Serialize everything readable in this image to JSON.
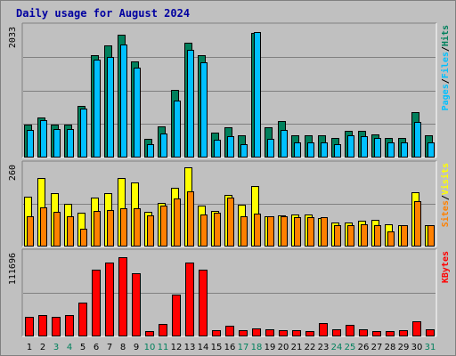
{
  "title": "Daily usage for August 2024",
  "colors": {
    "background": "#c0c0c0",
    "grid": "#808080",
    "hits": "#00805c",
    "files": "#00c0ff",
    "pages": "#00c0ff",
    "visits": "#ffff00",
    "sites": "#ff8000",
    "kbytes": "#ff0000",
    "weekend_label": "#00805c",
    "weekday_label": "#000000"
  },
  "chart_data": [
    {
      "type": "bar",
      "name": "hits-files-pages",
      "ymax_label": "2033",
      "ymax": 2033,
      "right_labels": [
        "Pages",
        "/",
        "Files",
        "/",
        "Hits"
      ],
      "categories": [
        "1",
        "2",
        "3",
        "4",
        "5",
        "6",
        "7",
        "8",
        "9",
        "10",
        "11",
        "12",
        "13",
        "14",
        "15",
        "16",
        "17",
        "18",
        "19",
        "20",
        "21",
        "22",
        "23",
        "24",
        "25",
        "26",
        "27",
        "28",
        "29",
        "30",
        "31"
      ],
      "series": [
        {
          "name": "Hits",
          "values": [
            500,
            620,
            500,
            500,
            800,
            1600,
            1750,
            1920,
            1500,
            280,
            480,
            1050,
            1800,
            1600,
            380,
            460,
            340,
            1950,
            460,
            560,
            330,
            330,
            330,
            300,
            400,
            400,
            350,
            300,
            300,
            700,
            330
          ]
        },
        {
          "name": "Files",
          "values": [
            420,
            570,
            430,
            430,
            760,
            1530,
            1570,
            1770,
            1400,
            200,
            360,
            880,
            1680,
            1490,
            260,
            320,
            200,
            1960,
            280,
            420,
            230,
            230,
            230,
            200,
            330,
            320,
            290,
            230,
            220,
            540,
            230
          ]
        },
        {
          "name": "Pages",
          "values": [
            10,
            10,
            10,
            10,
            10,
            10,
            10,
            10,
            10,
            10,
            10,
            10,
            10,
            10,
            10,
            10,
            10,
            10,
            10,
            10,
            10,
            10,
            10,
            10,
            10,
            10,
            10,
            10,
            10,
            10,
            10
          ]
        }
      ]
    },
    {
      "type": "bar",
      "name": "visits-sites",
      "ymax_label": "260",
      "ymax": 260,
      "right_labels": [
        "Sites",
        "/",
        "Visits"
      ],
      "categories": [
        "1",
        "2",
        "3",
        "4",
        "5",
        "6",
        "7",
        "8",
        "9",
        "10",
        "11",
        "12",
        "13",
        "14",
        "15",
        "16",
        "17",
        "18",
        "19",
        "20",
        "21",
        "22",
        "23",
        "24",
        "25",
        "26",
        "27",
        "28",
        "29",
        "30",
        "31"
      ],
      "series": [
        {
          "name": "Visits",
          "values": [
            160,
            220,
            170,
            135,
            107,
            156,
            170,
            220,
            205,
            110,
            140,
            188,
            255,
            130,
            112,
            164,
            134,
            193,
            96,
            98,
            100,
            100,
            90,
            74,
            75,
            80,
            83,
            70,
            67,
            174,
            67
          ]
        },
        {
          "name": "Sites",
          "values": [
            95,
            125,
            111,
            94,
            56,
            112,
            116,
            122,
            122,
            99,
            131,
            152,
            176,
            100,
            106,
            157,
            96,
            104,
            95,
            94,
            93,
            92,
            91,
            65,
            65,
            68,
            66,
            46,
            66,
            143,
            65
          ]
        }
      ]
    },
    {
      "type": "bar",
      "name": "kbytes",
      "ymax_label": "111696",
      "ymax": 111696,
      "right_labels": [
        "KBytes"
      ],
      "categories": [
        "1",
        "2",
        "3",
        "4",
        "5",
        "6",
        "7",
        "8",
        "9",
        "10",
        "11",
        "12",
        "13",
        "14",
        "15",
        "16",
        "17",
        "18",
        "19",
        "20",
        "21",
        "22",
        "23",
        "24",
        "25",
        "26",
        "27",
        "28",
        "29",
        "30",
        "31"
      ],
      "series": [
        {
          "name": "KBytes",
          "values": [
            25000,
            28000,
            25000,
            28000,
            45000,
            90000,
            99000,
            107000,
            85000,
            6000,
            16000,
            56000,
            99000,
            90000,
            7500,
            13000,
            7000,
            10000,
            8000,
            7000,
            7000,
            6000,
            17000,
            8000,
            14000,
            8000,
            6000,
            6000,
            7000,
            19000,
            8000
          ]
        }
      ]
    }
  ],
  "x_labels": [
    {
      "text": "1",
      "weekend": false
    },
    {
      "text": "2",
      "weekend": false
    },
    {
      "text": "3",
      "weekend": true
    },
    {
      "text": "4",
      "weekend": true
    },
    {
      "text": "5",
      "weekend": false
    },
    {
      "text": "6",
      "weekend": false
    },
    {
      "text": "7",
      "weekend": false
    },
    {
      "text": "8",
      "weekend": false
    },
    {
      "text": "9",
      "weekend": false
    },
    {
      "text": "10",
      "weekend": true
    },
    {
      "text": "11",
      "weekend": true
    },
    {
      "text": "12",
      "weekend": false
    },
    {
      "text": "13",
      "weekend": false
    },
    {
      "text": "14",
      "weekend": false
    },
    {
      "text": "15",
      "weekend": false
    },
    {
      "text": "16",
      "weekend": false
    },
    {
      "text": "17",
      "weekend": true
    },
    {
      "text": "18",
      "weekend": true
    },
    {
      "text": "19",
      "weekend": false
    },
    {
      "text": "20",
      "weekend": false
    },
    {
      "text": "21",
      "weekend": false
    },
    {
      "text": "22",
      "weekend": false
    },
    {
      "text": "23",
      "weekend": false
    },
    {
      "text": "24",
      "weekend": true
    },
    {
      "text": "25",
      "weekend": true
    },
    {
      "text": "26",
      "weekend": false
    },
    {
      "text": "27",
      "weekend": false
    },
    {
      "text": "28",
      "weekend": false
    },
    {
      "text": "29",
      "weekend": false
    },
    {
      "text": "30",
      "weekend": false
    },
    {
      "text": "31",
      "weekend": true
    }
  ]
}
